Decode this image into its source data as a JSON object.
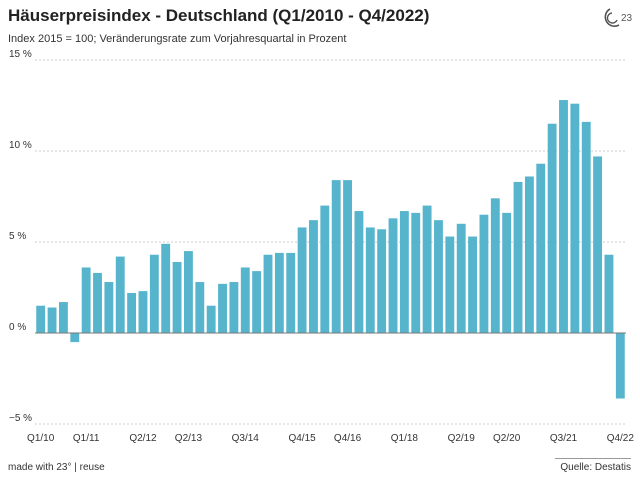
{
  "header": {
    "title": "Häuserpreisindex - Deutschland (Q1/2010 - Q4/2022)",
    "subtitle": "Index 2015 = 100; Veränderungsrate zum Vorjahresquartal in Prozent",
    "logo_text": "23"
  },
  "footer": {
    "made_with": "made with 23° | reuse",
    "source": "Quelle: Destatis"
  },
  "colors": {
    "bar": "#56b4cc",
    "grid": "#cccccc",
    "zero_line": "#777777",
    "text": "#333333"
  },
  "chart_data": {
    "type": "bar",
    "title": "Häuserpreisindex - Deutschland (Q1/2010 - Q4/2022)",
    "subtitle": "Index 2015 = 100; Veränderungsrate zum Vorjahresquartal in Prozent",
    "ylim": [
      -5,
      15
    ],
    "yticks": [
      15,
      10,
      5,
      0,
      -5
    ],
    "ytick_labels": [
      "15 %",
      "10 %",
      "5 %",
      "0 %",
      "−5 %"
    ],
    "grid": true,
    "categories": [
      "Q1/10",
      "Q2/10",
      "Q3/10",
      "Q4/10",
      "Q1/11",
      "Q2/11",
      "Q3/11",
      "Q4/11",
      "Q1/12",
      "Q2/12",
      "Q3/12",
      "Q4/12",
      "Q1/13",
      "Q2/13",
      "Q3/13",
      "Q4/13",
      "Q1/14",
      "Q2/14",
      "Q3/14",
      "Q4/14",
      "Q1/15",
      "Q2/15",
      "Q3/15",
      "Q4/15",
      "Q1/16",
      "Q2/16",
      "Q3/16",
      "Q4/16",
      "Q1/17",
      "Q2/17",
      "Q3/17",
      "Q4/17",
      "Q1/18",
      "Q2/18",
      "Q3/18",
      "Q4/18",
      "Q1/19",
      "Q2/19",
      "Q3/19",
      "Q4/19",
      "Q1/20",
      "Q2/20",
      "Q3/20",
      "Q4/20",
      "Q1/21",
      "Q2/21",
      "Q3/21",
      "Q4/21",
      "Q1/22",
      "Q2/22",
      "Q3/22",
      "Q4/22"
    ],
    "values": [
      1.5,
      1.4,
      1.7,
      -0.5,
      3.6,
      3.3,
      2.8,
      4.2,
      2.2,
      2.3,
      4.3,
      4.9,
      3.9,
      4.5,
      2.8,
      1.5,
      2.7,
      2.8,
      3.6,
      3.4,
      4.3,
      4.4,
      4.4,
      5.8,
      6.2,
      7.0,
      8.4,
      8.4,
      6.7,
      5.8,
      5.7,
      6.3,
      6.7,
      6.6,
      7.0,
      6.2,
      5.3,
      6.0,
      5.3,
      6.5,
      7.4,
      6.6,
      8.3,
      8.6,
      9.3,
      11.5,
      12.8,
      12.6,
      11.6,
      9.7,
      4.3,
      -3.6
    ],
    "xtick_labels": [
      {
        "index": 0,
        "label": "Q1/10"
      },
      {
        "index": 4,
        "label": "Q1/11"
      },
      {
        "index": 9,
        "label": "Q2/12"
      },
      {
        "index": 13,
        "label": "Q2/13"
      },
      {
        "index": 18,
        "label": "Q3/14"
      },
      {
        "index": 23,
        "label": "Q4/15"
      },
      {
        "index": 27,
        "label": "Q4/16"
      },
      {
        "index": 32,
        "label": "Q1/18"
      },
      {
        "index": 37,
        "label": "Q2/19"
      },
      {
        "index": 41,
        "label": "Q2/20"
      },
      {
        "index": 46,
        "label": "Q3/21"
      },
      {
        "index": 51,
        "label": "Q4/22"
      }
    ]
  }
}
